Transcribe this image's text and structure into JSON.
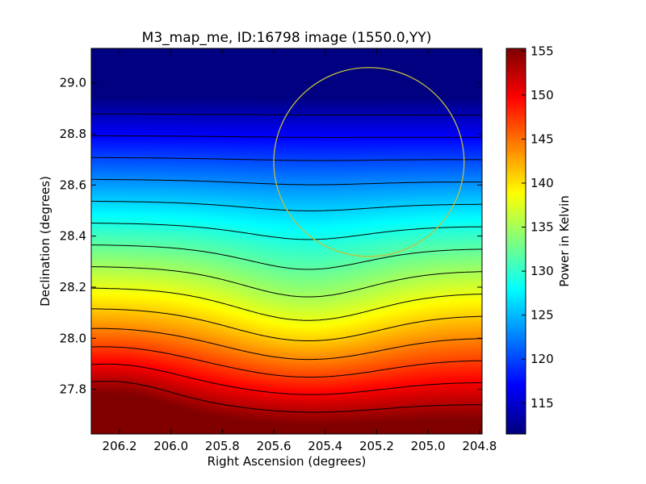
{
  "chart_data": {
    "type": "heatmap",
    "title": "M3_map_me, ID:16798 image (1550.0,YY)",
    "xlabel": "Right Ascension (degrees)",
    "ylabel": "Declination (degrees)",
    "x_range": [
      206.31,
      204.79
    ],
    "y_range": [
      27.625,
      29.135
    ],
    "x_ticks": [
      "206.2",
      "206.0",
      "205.8",
      "205.6",
      "205.4",
      "205.2",
      "205.0",
      "204.8"
    ],
    "x_tick_values": [
      206.2,
      206.0,
      205.8,
      205.6,
      205.4,
      205.2,
      205.0,
      204.8
    ],
    "y_ticks": [
      "27.8",
      "28.0",
      "28.2",
      "28.4",
      "28.6",
      "28.8",
      "29.0"
    ],
    "y_tick_values": [
      27.8,
      28.0,
      28.2,
      28.4,
      28.6,
      28.8,
      29.0
    ],
    "colorbar": {
      "label": "Power in Kelvin",
      "range": [
        111.5,
        155.3
      ],
      "ticks": [
        "115",
        "120",
        "125",
        "130",
        "135",
        "140",
        "145",
        "150",
        "155"
      ],
      "tick_values": [
        115,
        120,
        125,
        130,
        135,
        140,
        145,
        150,
        155
      ],
      "colormap": "jet"
    },
    "contour_levels": [
      114,
      117,
      120,
      123,
      126,
      129,
      132,
      135,
      138,
      141,
      144,
      147,
      150,
      153
    ],
    "contour_color": "#000000",
    "circle": {
      "center_ra": 205.23,
      "center_dec": 28.69,
      "radius_ra": 0.37,
      "radius_dec": 0.37,
      "color": "#bfbf3f"
    },
    "grid": false
  }
}
